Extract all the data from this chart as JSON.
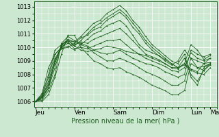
{
  "bg_color": "#cce8d0",
  "plot_bg_color": "#cce8d0",
  "grid_color": "#ffffff",
  "line_color": "#1a5c1a",
  "ylabel_ticks": [
    1006,
    1007,
    1008,
    1009,
    1010,
    1011,
    1012,
    1013
  ],
  "xlabel": "Pression niveau de la mer( hPa )",
  "x_tick_labels": [
    "Jeu",
    "Ven",
    "Sam",
    "Dim",
    "Lun",
    "Ma"
  ],
  "x_tick_positions": [
    0,
    24,
    48,
    72,
    96,
    108
  ],
  "ylim": [
    1005.6,
    1013.4
  ],
  "xlim": [
    -1,
    112
  ],
  "series": [
    [
      0,
      1006.0,
      4,
      1006.2,
      8,
      1007.2,
      12,
      1008.8,
      16,
      1010.2,
      20,
      1010.5,
      24,
      1010.1,
      28,
      1009.8,
      32,
      1009.7,
      36,
      1009.8,
      40,
      1009.9,
      44,
      1010.1,
      48,
      1010.0,
      52,
      1009.9,
      56,
      1009.7,
      60,
      1009.6,
      64,
      1009.5,
      68,
      1009.4,
      72,
      1009.2,
      76,
      1009.0,
      80,
      1008.8,
      84,
      1008.5,
      88,
      1008.5,
      92,
      1008.8,
      96,
      1008.4,
      100,
      1008.2,
      104,
      1008.8,
      108,
      1008.9
    ],
    [
      0,
      1006.0,
      4,
      1006.3,
      8,
      1007.5,
      12,
      1009.2,
      16,
      1009.9,
      20,
      1010.1,
      24,
      1009.8,
      28,
      1010.2,
      32,
      1010.6,
      36,
      1011.0,
      40,
      1011.2,
      44,
      1011.6,
      48,
      1011.8,
      52,
      1012.0,
      56,
      1011.6,
      60,
      1010.9,
      64,
      1010.2,
      68,
      1009.8,
      72,
      1009.6,
      76,
      1009.4,
      80,
      1009.1,
      84,
      1008.8,
      88,
      1008.5,
      92,
      1008.7,
      96,
      1008.3,
      100,
      1008.1,
      104,
      1008.0,
      108,
      1008.5
    ],
    [
      0,
      1006.0,
      4,
      1006.4,
      8,
      1007.8,
      12,
      1009.5,
      16,
      1010.0,
      20,
      1010.3,
      24,
      1010.1,
      28,
      1010.5,
      32,
      1011.0,
      36,
      1011.5,
      40,
      1011.8,
      44,
      1012.2,
      48,
      1012.5,
      52,
      1012.8,
      56,
      1012.4,
      60,
      1011.8,
      64,
      1011.2,
      68,
      1010.5,
      72,
      1010.0,
      76,
      1009.6,
      80,
      1009.2,
      84,
      1008.8,
      88,
      1008.5,
      92,
      1009.2,
      96,
      1008.0,
      100,
      1007.5,
      104,
      1008.3,
      108,
      1008.7
    ],
    [
      0,
      1006.0,
      4,
      1006.5,
      8,
      1008.0,
      12,
      1009.8,
      16,
      1010.2,
      20,
      1010.5,
      24,
      1010.4,
      28,
      1010.8,
      32,
      1011.3,
      36,
      1011.8,
      40,
      1012.0,
      44,
      1012.5,
      48,
      1012.8,
      52,
      1013.1,
      56,
      1012.7,
      60,
      1012.0,
      64,
      1011.5,
      68,
      1010.8,
      72,
      1010.2,
      76,
      1009.8,
      80,
      1009.4,
      84,
      1009.0,
      88,
      1008.8,
      92,
      1009.5,
      96,
      1007.8,
      100,
      1007.2,
      104,
      1008.5,
      108,
      1008.8
    ],
    [
      0,
      1006.0,
      4,
      1006.6,
      8,
      1008.5,
      12,
      1009.5,
      16,
      1009.9,
      20,
      1010.0,
      24,
      1010.3,
      28,
      1010.7,
      32,
      1010.9,
      36,
      1011.3,
      40,
      1011.5,
      44,
      1012.0,
      48,
      1012.3,
      52,
      1012.6,
      56,
      1012.2,
      60,
      1011.5,
      64,
      1011.0,
      68,
      1010.3,
      72,
      1009.8,
      76,
      1009.4,
      80,
      1009.0,
      84,
      1008.7,
      88,
      1009.0,
      92,
      1009.8,
      96,
      1009.2,
      100,
      1008.5,
      104,
      1008.6,
      108,
      1008.8
    ],
    [
      0,
      1006.0,
      4,
      1006.3,
      8,
      1007.0,
      12,
      1009.0,
      16,
      1010.1,
      20,
      1010.4,
      24,
      1009.9,
      28,
      1010.0,
      32,
      1009.9,
      36,
      1010.1,
      40,
      1010.3,
      44,
      1010.5,
      48,
      1010.5,
      52,
      1010.6,
      56,
      1010.2,
      60,
      1009.8,
      64,
      1009.5,
      68,
      1009.2,
      72,
      1009.0,
      76,
      1008.8,
      80,
      1008.6,
      84,
      1008.3,
      88,
      1008.2,
      92,
      1008.5,
      96,
      1009.6,
      100,
      1009.2,
      104,
      1009.0,
      108,
      1009.2
    ],
    [
      0,
      1006.0,
      4,
      1006.4,
      8,
      1007.3,
      12,
      1009.0,
      16,
      1010.0,
      20,
      1010.5,
      24,
      1010.2,
      28,
      1010.4,
      32,
      1010.3,
      36,
      1010.6,
      40,
      1010.8,
      44,
      1011.0,
      48,
      1011.2,
      52,
      1011.4,
      56,
      1011.0,
      60,
      1010.5,
      64,
      1010.0,
      68,
      1009.5,
      72,
      1009.3,
      76,
      1009.1,
      80,
      1008.8,
      84,
      1008.5,
      88,
      1008.4,
      92,
      1008.8,
      96,
      1010.2,
      100,
      1009.8,
      104,
      1009.1,
      108,
      1009.4
    ],
    [
      0,
      1006.0,
      4,
      1006.2,
      8,
      1007.0,
      12,
      1008.5,
      16,
      1010.2,
      20,
      1010.6,
      24,
      1010.4,
      28,
      1010.3,
      32,
      1010.1,
      36,
      1009.8,
      40,
      1009.6,
      44,
      1009.5,
      48,
      1009.6,
      52,
      1009.8,
      56,
      1009.5,
      60,
      1009.2,
      64,
      1009.0,
      68,
      1008.8,
      72,
      1008.7,
      76,
      1008.5,
      80,
      1008.2,
      84,
      1008.0,
      88,
      1007.8,
      92,
      1008.0,
      96,
      1009.8,
      100,
      1009.5,
      104,
      1009.3,
      108,
      1009.5
    ],
    [
      0,
      1006.0,
      4,
      1006.1,
      8,
      1006.8,
      12,
      1008.0,
      16,
      1010.3,
      20,
      1010.8,
      24,
      1010.5,
      28,
      1010.2,
      32,
      1010.0,
      36,
      1009.6,
      40,
      1009.3,
      44,
      1009.0,
      48,
      1009.0,
      52,
      1009.2,
      56,
      1009.0,
      60,
      1008.8,
      64,
      1008.5,
      68,
      1008.2,
      72,
      1008.0,
      76,
      1007.8,
      80,
      1007.5,
      84,
      1007.2,
      88,
      1007.2,
      92,
      1007.5,
      96,
      1009.2,
      100,
      1009.0,
      104,
      1008.8,
      108,
      1009.2
    ],
    [
      0,
      1006.0,
      4,
      1006.0,
      8,
      1006.5,
      12,
      1007.8,
      16,
      1009.5,
      20,
      1010.9,
      24,
      1010.9,
      28,
      1010.0,
      32,
      1009.5,
      36,
      1009.0,
      40,
      1008.8,
      44,
      1008.5,
      48,
      1008.4,
      52,
      1008.5,
      56,
      1008.2,
      60,
      1008.0,
      64,
      1007.8,
      68,
      1007.5,
      72,
      1007.2,
      76,
      1007.0,
      80,
      1006.8,
      84,
      1006.5,
      88,
      1006.5,
      92,
      1006.8,
      96,
      1008.8,
      100,
      1008.5,
      104,
      1008.3,
      108,
      1008.8
    ]
  ]
}
